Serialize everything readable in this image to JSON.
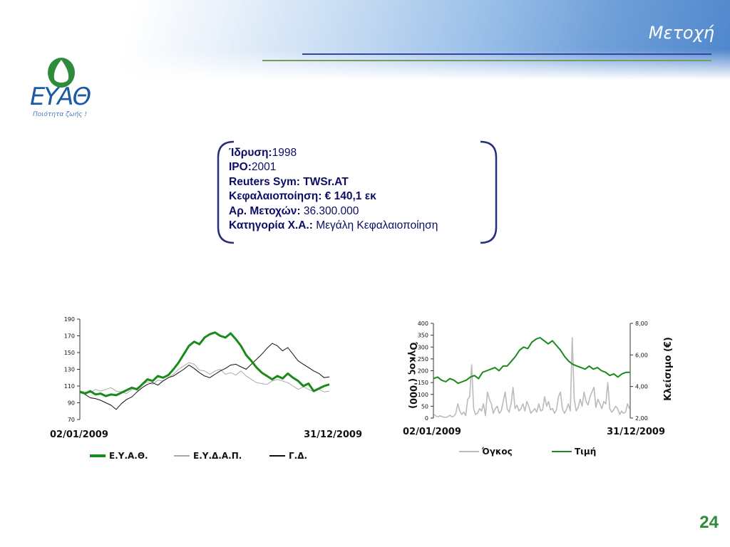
{
  "slide": {
    "title": "Μετοχή",
    "page_number": "24",
    "logo_text": "ΕΥΑΘ",
    "logo_slogan": "Ποιότητα ζωής !"
  },
  "info": {
    "founded_label": "Ίδρυση:",
    "founded_value": "1998",
    "ipo_label": "IPO:",
    "ipo_value": "2001",
    "reuters": "Reuters Sym: TWSr.AT",
    "cap": "Κεφαλαιοποίηση: € 140,1 εκ",
    "shares_label": "Αρ. Μετοχών:",
    "shares_value": "36.300.000",
    "category_label": "Κατηγορία Χ.Α.:",
    "category_value": "Μεγάλη Κεφαλαιοποίηση"
  },
  "colors": {
    "eyath": "#1a8a1a",
    "eydap": "#aaaaaa",
    "gd": "#111111",
    "volume": "#bbbbbb",
    "price": "#1a8a1a",
    "accent_blue": "#3344aa",
    "accent_green": "#2e8b3c"
  },
  "chart_data": [
    {
      "type": "line",
      "x_start": "02/01/2009",
      "x_end": "31/12/2009",
      "ylim": [
        70,
        190
      ],
      "yticks": [
        "70",
        "90",
        "110",
        "130",
        "150",
        "170",
        "190"
      ],
      "series": [
        {
          "name": "Ε.Υ.Α.Θ.",
          "values": [
            103,
            101,
            104,
            100,
            101,
            98,
            100,
            99,
            102,
            105,
            108,
            106,
            112,
            118,
            116,
            122,
            120,
            123,
            130,
            138,
            148,
            158,
            163,
            160,
            168,
            172,
            174,
            170,
            168,
            173,
            166,
            158,
            147,
            140,
            132,
            126,
            122,
            118,
            122,
            119,
            125,
            120,
            116,
            110,
            113,
            104,
            107,
            110,
            112
          ]
        },
        {
          "name": "Ε.Υ.Δ.Α.Π.",
          "values": [
            104,
            103,
            102,
            106,
            104,
            106,
            108,
            104,
            103,
            101,
            106,
            108,
            112,
            115,
            112,
            117,
            116,
            120,
            124,
            130,
            134,
            138,
            136,
            129,
            128,
            124,
            128,
            130,
            124,
            126,
            123,
            128,
            122,
            118,
            114,
            113,
            112,
            116,
            118,
            116,
            114,
            110,
            106,
            109,
            106,
            103,
            106,
            103,
            104
          ]
        },
        {
          "name": "Γ.Δ.",
          "values": [
            104,
            100,
            96,
            95,
            93,
            90,
            87,
            82,
            89,
            94,
            97,
            103,
            108,
            112,
            114,
            111,
            116,
            120,
            122,
            126,
            130,
            135,
            131,
            126,
            122,
            120,
            124,
            128,
            131,
            135,
            136,
            133,
            130,
            136,
            142,
            148,
            155,
            161,
            158,
            152,
            156,
            148,
            140,
            136,
            132,
            128,
            125,
            120,
            121
          ]
        }
      ]
    },
    {
      "type": "bar+line",
      "x_start": "02/01/2009",
      "x_end": "31/12/2009",
      "y_left_label": "Όγκος ('000)",
      "y_right_label": "Κλείσιμο (€)",
      "ylim_left": [
        0,
        400
      ],
      "ylim_right": [
        2,
        8
      ],
      "yticks_left": [
        "0",
        "50",
        "100",
        "150",
        "200",
        "250",
        "300",
        "350",
        "400"
      ],
      "yticks_right": [
        "2,00",
        "4,00",
        "6,00",
        "8,00"
      ],
      "series": [
        {
          "name": "Όγκος",
          "values": [
            15,
            8,
            5,
            10,
            6,
            4,
            3,
            6,
            12,
            5,
            8,
            20,
            60,
            30,
            15,
            25,
            10,
            80,
            90,
            225,
            40,
            15,
            20,
            40,
            30,
            60,
            10,
            110,
            80,
            60,
            20,
            40,
            50,
            20,
            30,
            70,
            110,
            40,
            25,
            60,
            130,
            40,
            55,
            30,
            40,
            60,
            30,
            70,
            50,
            20,
            30,
            40,
            25,
            60,
            30,
            35,
            90,
            50,
            70,
            35,
            40,
            20,
            35,
            90,
            110,
            40,
            20,
            35,
            60,
            30,
            340,
            80,
            30,
            45,
            80,
            50,
            110,
            70,
            55,
            90,
            110,
            130,
            45,
            80,
            60,
            40,
            70,
            60,
            150,
            40,
            25,
            35,
            50,
            40,
            15,
            30,
            20,
            25,
            60,
            40
          ]
        },
        {
          "name": "Τιμή",
          "values": [
            4.5,
            4.6,
            4.4,
            4.3,
            4.5,
            4.4,
            4.2,
            4.3,
            4.4,
            4.6,
            4.7,
            4.5,
            4.9,
            5.0,
            5.1,
            5.2,
            5.0,
            5.3,
            5.3,
            5.6,
            5.9,
            6.3,
            6.5,
            6.4,
            6.8,
            7.0,
            7.1,
            6.9,
            6.7,
            6.9,
            6.6,
            6.3,
            5.9,
            5.6,
            5.4,
            5.3,
            5.2,
            5.1,
            5.3,
            5.1,
            5.2,
            5.0,
            4.9,
            4.7,
            4.8,
            4.6,
            4.8,
            4.9,
            4.9
          ]
        }
      ]
    }
  ],
  "legends": {
    "left": [
      "Ε.Υ.Α.Θ.",
      "Ε.Υ.Δ.Α.Π.",
      "Γ.Δ."
    ],
    "right": [
      "Όγκος",
      "Τιμή"
    ]
  }
}
